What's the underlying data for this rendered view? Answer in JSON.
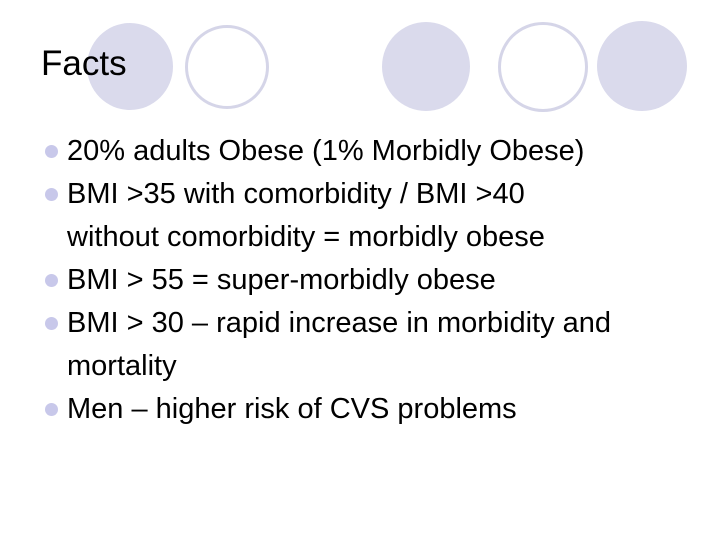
{
  "slide": {
    "title": "Facts",
    "bullets": [
      {
        "text": "20% adults Obese (1% Morbidly Obese)"
      },
      {
        "text": "BMI >35 with comorbidity / BMI >40\nwithout comorbidity = morbidly obese"
      },
      {
        "text": "BMI > 55 = super-morbidly obese"
      },
      {
        "text": "BMI > 30 – rapid increase in morbidity and\nmortality"
      },
      {
        "text": "Men – higher risk of CVS problems"
      }
    ],
    "decor_circles": [
      "filled",
      "outlined",
      "filled",
      "outlined",
      "filled"
    ],
    "colors": {
      "background": "#FFFFFF",
      "text": "#000000",
      "circle_fill": "#DADAEC",
      "circle_outline": "#D5D5E8",
      "bullet": "#C8C8EA"
    }
  }
}
